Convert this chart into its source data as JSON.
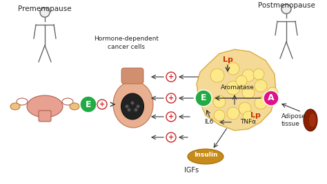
{
  "title_left": "Premenopause",
  "title_right": "Postmenopause",
  "center_label": "Hormone-dependent\ncancer cells",
  "background_color": "#ffffff",
  "adipose_color": "#f5d78e",
  "adipose_outline": "#d4a830",
  "arrow_color": "#333333",
  "plus_circle_color": "#cc2222",
  "E_circle_color": "#22aa44",
  "A_circle_color": "#dd1188",
  "Lp_color": "#cc3300",
  "text_color": "#222222",
  "body_color": "#666666",
  "aromatase_text": "Aromatase",
  "IL6_text": "IL6",
  "TNFa_text": "TNFα",
  "Lp_text": "Lp",
  "insulin_text": "Insulin",
  "IGFs_text": "IGFs",
  "adipose_text": "Adipose\ntissue",
  "E_label": "E",
  "A_label": "A",
  "plus_label": "+"
}
